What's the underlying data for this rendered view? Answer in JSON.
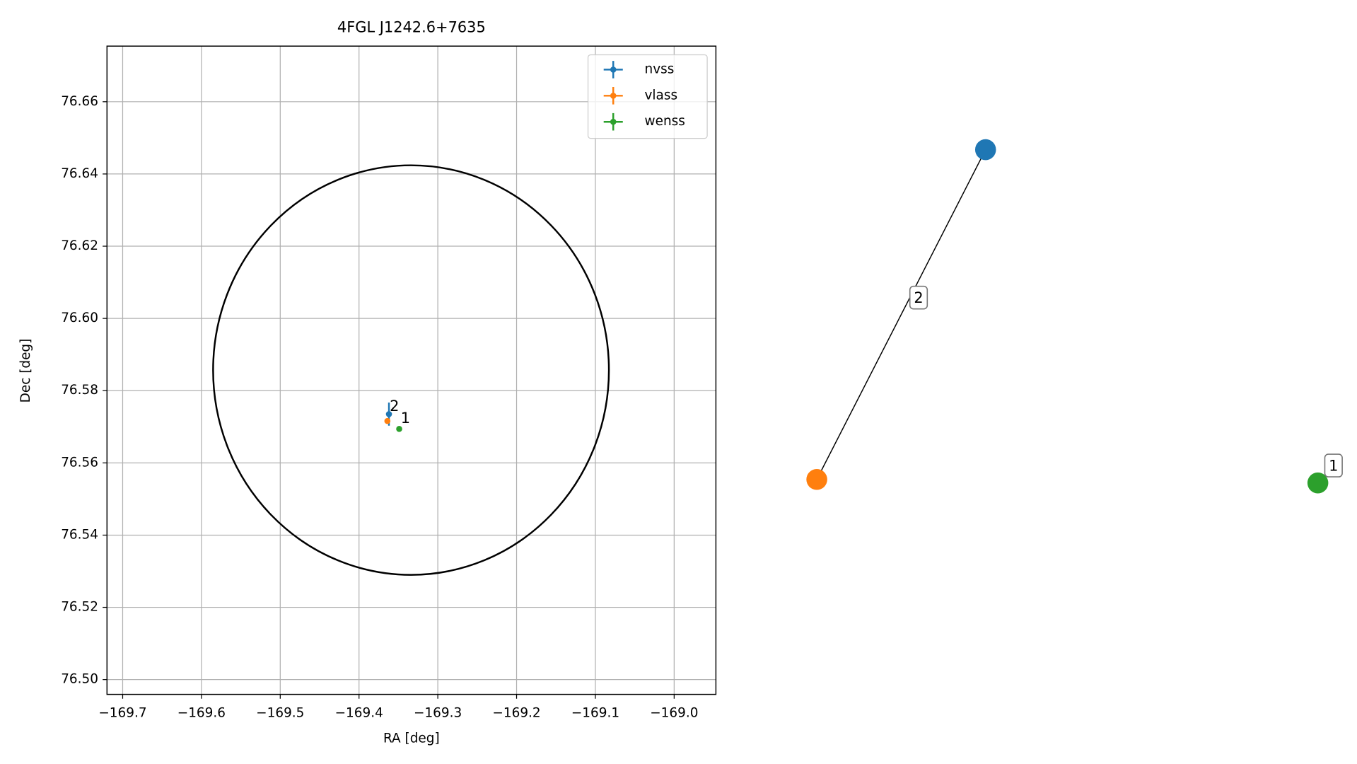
{
  "chart_data": [
    {
      "type": "scatter",
      "title": "4FGL J1242.6+7635",
      "x_label": "RA [deg]",
      "y_label": "Dec [deg]",
      "xlim": [
        -169.7199,
        -168.947
      ],
      "ylim": [
        76.4959,
        76.6754
      ],
      "xticks": [
        {
          "value": -169.7,
          "label": "−169.7"
        },
        {
          "value": -169.6,
          "label": "−169.6"
        },
        {
          "value": -169.5,
          "label": "−169.5"
        },
        {
          "value": -169.4,
          "label": "−169.4"
        },
        {
          "value": -169.3,
          "label": "−169.3"
        },
        {
          "value": -169.2,
          "label": "−169.2"
        },
        {
          "value": -169.1,
          "label": "−169.1"
        },
        {
          "value": -169.0,
          "label": "−169.0"
        }
      ],
      "yticks": [
        {
          "value": 76.5,
          "label": "76.50"
        },
        76.52,
        76.54,
        76.56,
        76.58,
        {
          "value": 76.6,
          "label": "76.60"
        },
        76.62,
        76.64,
        76.66
      ],
      "grid": true,
      "legend": "upper right",
      "region": {
        "center": [
          -169.334,
          76.5857
        ],
        "ra_radius": 0.2512,
        "dec_radius": 0.0567,
        "color": "#000000"
      },
      "series": [
        {
          "name": "nvss",
          "color": "#1f77b4",
          "x": [
            -169.362
          ],
          "values": [
            76.5735
          ],
          "yerr": [
            0.0032
          ]
        },
        {
          "name": "vlass",
          "color": "#ff7f0e",
          "x": [
            -169.364
          ],
          "values": [
            76.5716
          ]
        },
        {
          "name": "wenss",
          "color": "#2ca02c",
          "x": [
            -169.349
          ],
          "values": [
            76.5694
          ]
        }
      ],
      "annotations": [
        {
          "text": "2",
          "x": -169.361,
          "y": 76.5755
        },
        {
          "text": "1",
          "x": -169.347,
          "y": 76.5722
        }
      ]
    },
    {
      "type": "network",
      "nodes": [
        {
          "color": "#1f77b4"
        },
        {
          "color": "#ff7f0e"
        },
        {
          "color": "#2ca02c"
        }
      ],
      "edges": [
        {
          "source": 0,
          "target": 1,
          "label": "2"
        },
        {
          "source": 2,
          "target": 2,
          "label": "1"
        }
      ]
    }
  ]
}
